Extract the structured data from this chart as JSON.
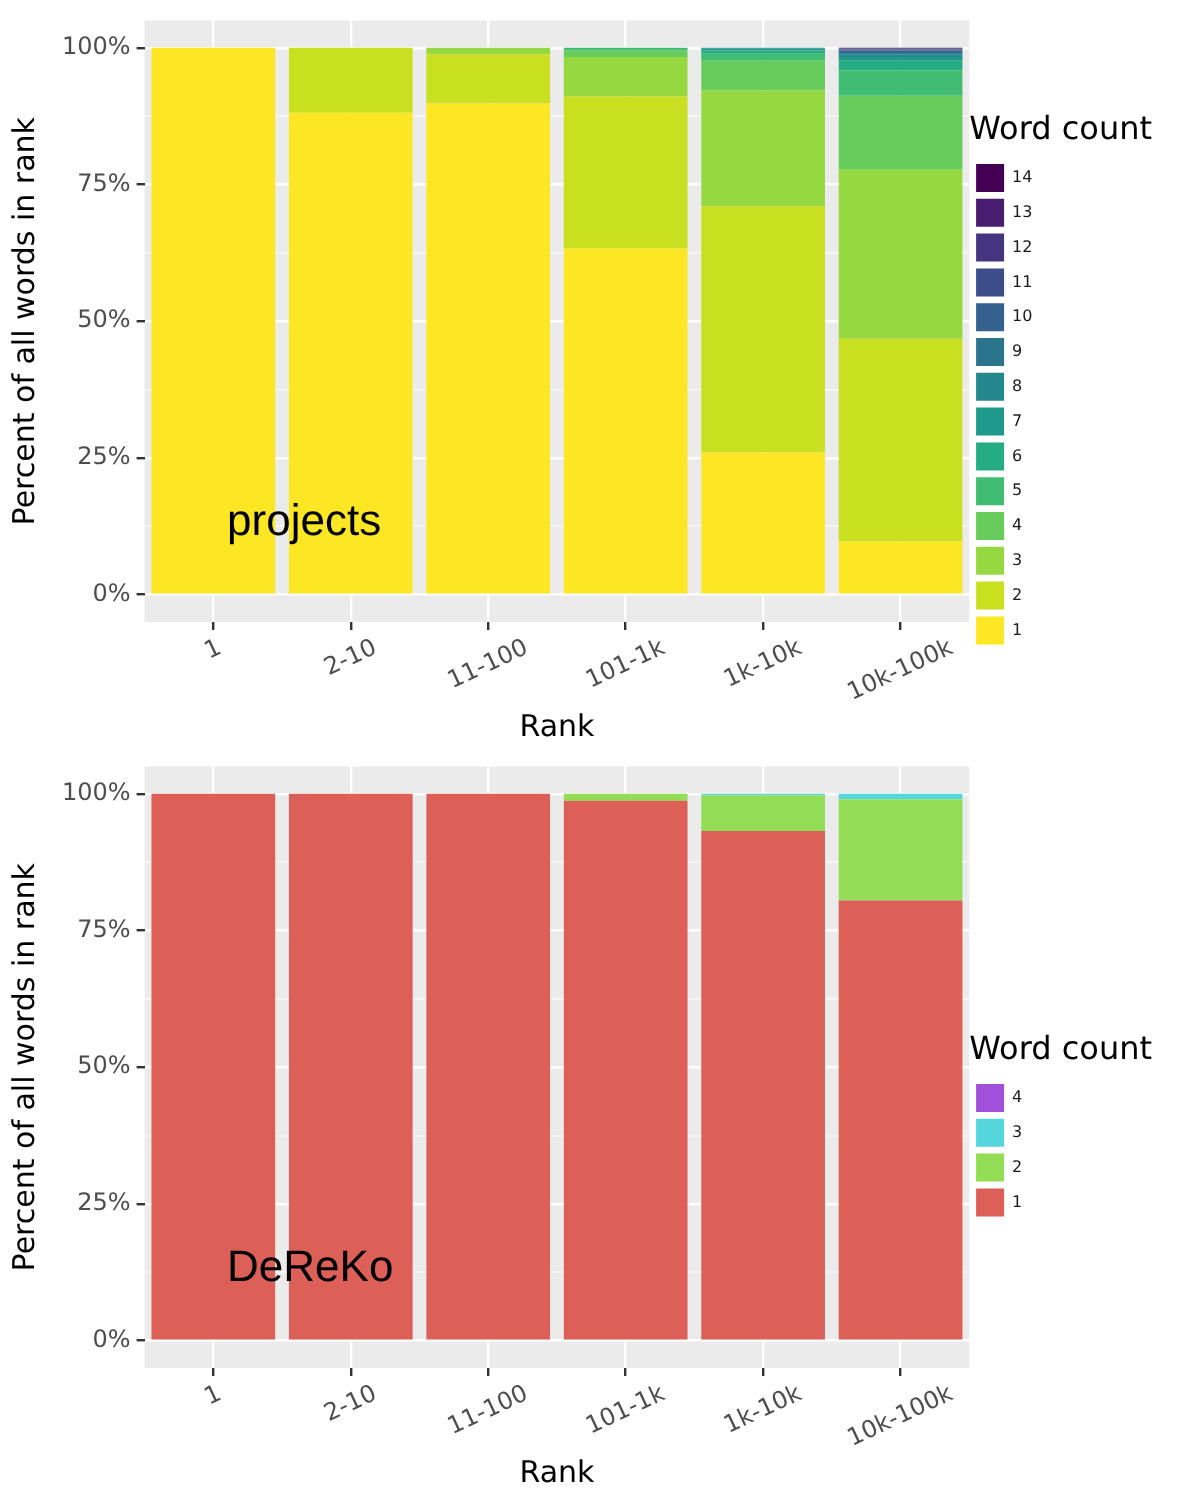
{
  "chart_data": [
    {
      "type": "bar",
      "stacked": true,
      "categories": [
        "1",
        "2-10",
        "11-100",
        "101-1k",
        "1k-10k",
        "10k-100k"
      ],
      "xlabel": "Rank",
      "ylabel": "Percent of all words in rank",
      "legend_title": "Word count",
      "legend": "right",
      "grid": true,
      "ylim": [
        -5,
        105
      ],
      "yticks": [
        {
          "value": 0,
          "label": "0%"
        },
        {
          "value": 12.5,
          "label": null
        },
        {
          "value": 25,
          "label": "25%"
        },
        {
          "value": 37.5,
          "label": null
        },
        {
          "value": 50,
          "label": "50%"
        },
        {
          "value": 62.5,
          "label": null
        },
        {
          "value": 75,
          "label": "75%"
        },
        {
          "value": 87.5,
          "label": null
        },
        {
          "value": 100,
          "label": "100%"
        }
      ],
      "annotations": [
        "projects"
      ],
      "series": [
        {
          "name": "1",
          "color": "#fde725",
          "values": [
            100,
            88.1,
            89.8,
            63.3,
            26.0,
            9.7
          ]
        },
        {
          "name": "2",
          "color": "#c8e020",
          "values": [
            0,
            11.9,
            9.0,
            27.8,
            45.0,
            37.1
          ]
        },
        {
          "name": "3",
          "color": "#95d840",
          "values": [
            0,
            0,
            1.2,
            7.2,
            21.2,
            30.9
          ]
        },
        {
          "name": "4",
          "color": "#67cc5c",
          "values": [
            0,
            0,
            0,
            1.2,
            5.4,
            13.5
          ]
        },
        {
          "name": "5",
          "color": "#40bd72",
          "values": [
            0,
            0,
            0,
            0.5,
            1.3,
            4.7
          ]
        },
        {
          "name": "6",
          "color": "#25ac82",
          "values": [
            0,
            0,
            0,
            0,
            0.6,
            1.7
          ]
        },
        {
          "name": "7",
          "color": "#1f998a",
          "values": [
            0,
            0,
            0,
            0,
            0.3,
            0.7
          ]
        },
        {
          "name": "8",
          "color": "#24878e",
          "values": [
            0,
            0,
            0,
            0,
            0.2,
            0.5
          ]
        },
        {
          "name": "9",
          "color": "#2b748e",
          "values": [
            0,
            0,
            0,
            0,
            0,
            0.4
          ]
        },
        {
          "name": "10",
          "color": "#34618d",
          "values": [
            0,
            0,
            0,
            0,
            0,
            0.3
          ]
        },
        {
          "name": "11",
          "color": "#3d4d8a",
          "values": [
            0,
            0,
            0,
            0,
            0,
            0.2
          ]
        },
        {
          "name": "12",
          "color": "#453581",
          "values": [
            0,
            0,
            0,
            0,
            0,
            0.1
          ]
        },
        {
          "name": "13",
          "color": "#481c6e",
          "values": [
            0,
            0,
            0,
            0,
            0,
            0.1
          ]
        },
        {
          "name": "14",
          "color": "#440154",
          "values": [
            0,
            0,
            0,
            0,
            0,
            0.1
          ]
        }
      ]
    },
    {
      "type": "bar",
      "stacked": true,
      "categories": [
        "1",
        "2-10",
        "11-100",
        "101-1k",
        "1k-10k",
        "10k-100k"
      ],
      "xlabel": "Rank",
      "ylabel": "Percent of all words in rank",
      "legend_title": "Word count",
      "legend": "right",
      "grid": true,
      "ylim": [
        -5,
        105
      ],
      "yticks": [
        {
          "value": 0,
          "label": "0%"
        },
        {
          "value": 12.5,
          "label": null
        },
        {
          "value": 25,
          "label": "25%"
        },
        {
          "value": 37.5,
          "label": null
        },
        {
          "value": 50,
          "label": "50%"
        },
        {
          "value": 62.5,
          "label": null
        },
        {
          "value": 75,
          "label": "75%"
        },
        {
          "value": 87.5,
          "label": null
        },
        {
          "value": 100,
          "label": "100%"
        }
      ],
      "annotations": [
        "DeReKo"
      ],
      "series": [
        {
          "name": "1",
          "color": "#dc5f58",
          "values": [
            100,
            100,
            100,
            98.7,
            93.2,
            80.5
          ]
        },
        {
          "name": "2",
          "color": "#93dc55",
          "values": [
            0,
            0,
            0,
            1.3,
            6.5,
            18.5
          ]
        },
        {
          "name": "3",
          "color": "#55d5dc",
          "values": [
            0,
            0,
            0,
            0,
            0.3,
            1.0
          ]
        },
        {
          "name": "4",
          "color": "#a150dc",
          "values": [
            0,
            0,
            0,
            0,
            0,
            0
          ]
        }
      ]
    }
  ]
}
